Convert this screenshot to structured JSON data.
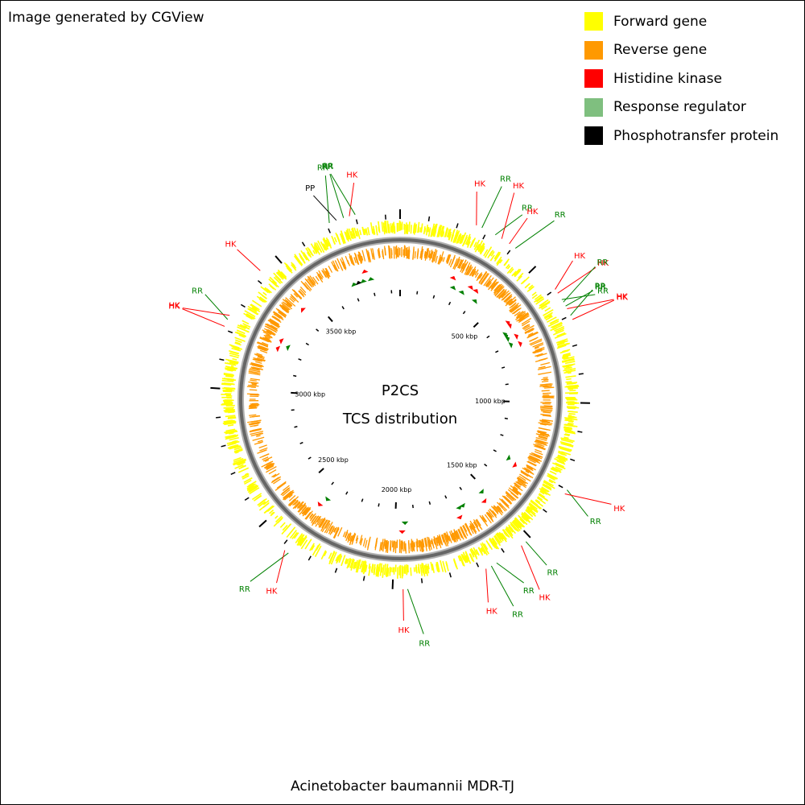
{
  "header": {
    "credit": "Image generated by CGView"
  },
  "legend": {
    "items": [
      {
        "label": "Forward gene",
        "color": "#ffff00"
      },
      {
        "label": "Reverse gene",
        "color": "#ff9900"
      },
      {
        "label": "Histidine kinase",
        "color": "#ff0000"
      },
      {
        "label": "Response regulator",
        "color": "#7fbf7f"
      },
      {
        "label": "Phosphotransfer protein",
        "color": "#000000"
      }
    ]
  },
  "map": {
    "title_line1": "P2CS",
    "title_line2": "TCS distribution",
    "genome_size_kbp": 3950,
    "tick_labels": [
      {
        "kbp": 500,
        "text": "500 kbp"
      },
      {
        "kbp": 1000,
        "text": "1000 kbp"
      },
      {
        "kbp": 1500,
        "text": "1500 kbp"
      },
      {
        "kbp": 2000,
        "text": "2000 kbp"
      },
      {
        "kbp": 2500,
        "text": "2500 kbp"
      },
      {
        "kbp": 3000,
        "text": "3000 kbp"
      },
      {
        "kbp": 3500,
        "text": "3500 kbp"
      }
    ],
    "features": [
      {
        "type": "HK",
        "kbp": 260
      },
      {
        "type": "RR",
        "kbp": 280
      },
      {
        "type": "RR",
        "kbp": 330
      },
      {
        "type": "HK",
        "kbp": 355
      },
      {
        "type": "HK",
        "kbp": 385
      },
      {
        "type": "RR",
        "kbp": 410
      },
      {
        "type": "HK",
        "kbp": 600
      },
      {
        "type": "HK",
        "kbp": 615
      },
      {
        "type": "RR",
        "kbp": 640
      },
      {
        "type": "RR",
        "kbp": 650
      },
      {
        "type": "RR",
        "kbp": 665
      },
      {
        "type": "HK",
        "kbp": 675
      },
      {
        "type": "RR",
        "kbp": 700
      },
      {
        "type": "HK",
        "kbp": 715
      },
      {
        "type": "RR",
        "kbp": 1300
      },
      {
        "type": "HK",
        "kbp": 1315
      },
      {
        "type": "RR",
        "kbp": 1520
      },
      {
        "type": "HK",
        "kbp": 1540
      },
      {
        "type": "RR",
        "kbp": 1640
      },
      {
        "type": "RR",
        "kbp": 1660
      },
      {
        "type": "HK",
        "kbp": 1680
      },
      {
        "type": "RR",
        "kbp": 1950
      },
      {
        "type": "HK",
        "kbp": 1965
      },
      {
        "type": "RR",
        "kbp": 2370
      },
      {
        "type": "HK",
        "kbp": 2385
      },
      {
        "type": "HK",
        "kbp": 3210
      },
      {
        "type": "RR",
        "kbp": 3235
      },
      {
        "type": "HK",
        "kbp": 3250
      },
      {
        "type": "HK",
        "kbp": 3430
      },
      {
        "type": "RR",
        "kbp": 3710
      },
      {
        "type": "PP",
        "kbp": 3735
      },
      {
        "type": "RR",
        "kbp": 3760
      },
      {
        "type": "HK",
        "kbp": 3780
      },
      {
        "type": "RR",
        "kbp": 3800
      }
    ]
  },
  "footer": {
    "organism": "Acinetobacter baumannii MDR-TJ"
  }
}
